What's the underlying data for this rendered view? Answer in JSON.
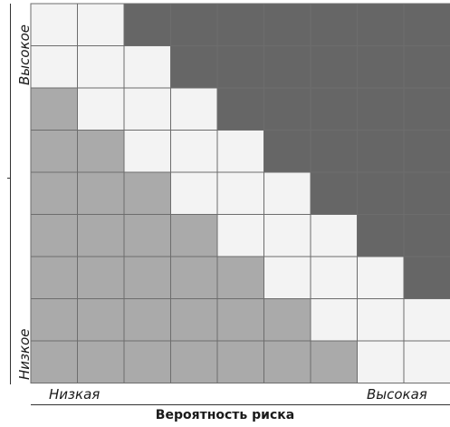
{
  "y_axis": {
    "high_label": "Высокое",
    "low_label": "Низкое"
  },
  "x_axis": {
    "low_label": "Низкая",
    "high_label": "Высокая",
    "title": "Вероятность риска"
  },
  "colors": {
    "light": "#f3f3f3",
    "medium": "#aaaaaa",
    "dark": "#666666",
    "grid": "#6d6d6d"
  },
  "grid": {
    "rows": 9,
    "cols": 9,
    "cells": [
      [
        "light",
        "light",
        "dark",
        "dark",
        "dark",
        "dark",
        "dark",
        "dark",
        "dark"
      ],
      [
        "light",
        "light",
        "light",
        "dark",
        "dark",
        "dark",
        "dark",
        "dark",
        "dark"
      ],
      [
        "medium",
        "light",
        "light",
        "light",
        "dark",
        "dark",
        "dark",
        "dark",
        "dark"
      ],
      [
        "medium",
        "medium",
        "light",
        "light",
        "light",
        "dark",
        "dark",
        "dark",
        "dark"
      ],
      [
        "medium",
        "medium",
        "medium",
        "light",
        "light",
        "light",
        "dark",
        "dark",
        "dark"
      ],
      [
        "medium",
        "medium",
        "medium",
        "medium",
        "light",
        "light",
        "light",
        "dark",
        "dark"
      ],
      [
        "medium",
        "medium",
        "medium",
        "medium",
        "medium",
        "light",
        "light",
        "light",
        "dark"
      ],
      [
        "medium",
        "medium",
        "medium",
        "medium",
        "medium",
        "medium",
        "light",
        "light",
        "light"
      ],
      [
        "medium",
        "medium",
        "medium",
        "medium",
        "medium",
        "medium",
        "medium",
        "light",
        "light"
      ]
    ]
  }
}
